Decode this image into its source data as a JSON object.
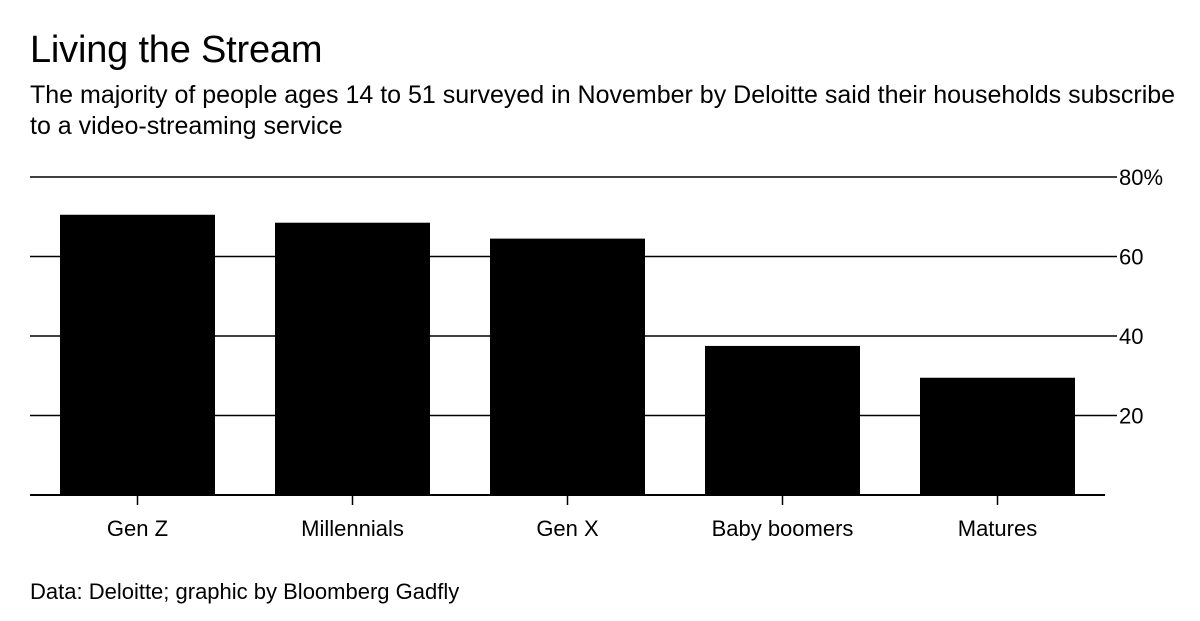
{
  "header": {
    "title": "Living the Stream",
    "subtitle": "The majority of people ages 14 to 51 surveyed in November by Deloitte said their households subscribe to a video-streaming service"
  },
  "footer": {
    "source": "Data: Deloitte; graphic by Bloomberg Gadfly"
  },
  "colors": {
    "bar": "#000000",
    "grid": "#000000",
    "background": "#ffffff"
  },
  "chart_data": {
    "type": "bar",
    "title": "Living the Stream",
    "xlabel": "",
    "ylabel": "",
    "categories": [
      "Gen Z",
      "Millennials",
      "Gen X",
      "Baby boomers",
      "Matures"
    ],
    "values": [
      70.5,
      68.5,
      64.5,
      37.5,
      29.5
    ],
    "ylim": [
      0,
      80
    ],
    "yticks": [
      20,
      40,
      60,
      80
    ],
    "ytick_labels": [
      "20",
      "40",
      "60",
      "80%"
    ],
    "grid": true,
    "y_axis_side": "right"
  }
}
